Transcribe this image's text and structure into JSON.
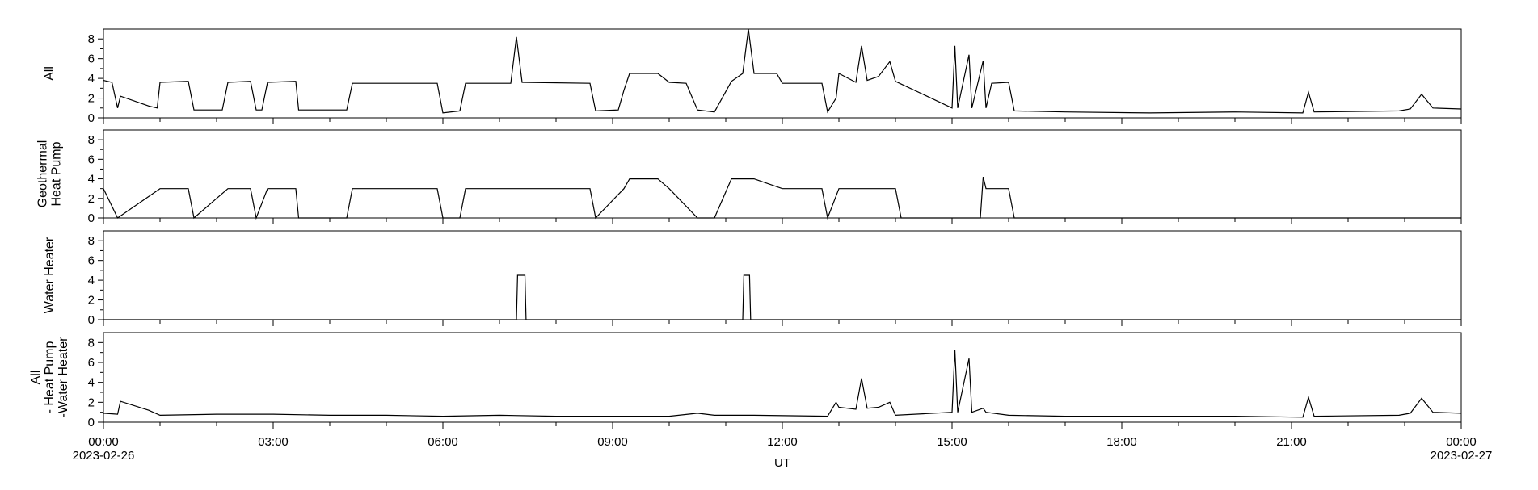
{
  "chart_data": [
    {
      "type": "line",
      "ylabel": [
        "All"
      ],
      "ylim": [
        0,
        9
      ],
      "yticks": [
        0,
        2,
        4,
        6,
        8
      ],
      "xlim": [
        "2023-02-26T00:00",
        "2023-02-27T00:00"
      ],
      "series": [
        {
          "values": [
            [
              0,
              3.8
            ],
            [
              0.15,
              3.6
            ],
            [
              0.25,
              1.0
            ],
            [
              0.3,
              2.2
            ],
            [
              0.8,
              1.2
            ],
            [
              0.95,
              1.0
            ],
            [
              1.0,
              3.6
            ],
            [
              1.5,
              3.7
            ],
            [
              1.6,
              0.8
            ],
            [
              2.1,
              0.8
            ],
            [
              2.2,
              3.6
            ],
            [
              2.6,
              3.7
            ],
            [
              2.7,
              0.8
            ],
            [
              2.8,
              0.8
            ],
            [
              2.9,
              3.6
            ],
            [
              3.4,
              3.7
            ],
            [
              3.45,
              0.8
            ],
            [
              4.3,
              0.8
            ],
            [
              4.4,
              3.5
            ],
            [
              5.9,
              3.5
            ],
            [
              6.0,
              0.5
            ],
            [
              6.3,
              0.7
            ],
            [
              6.4,
              3.5
            ],
            [
              7.2,
              3.5
            ],
            [
              7.3,
              8.2
            ],
            [
              7.4,
              3.6
            ],
            [
              8.6,
              3.5
            ],
            [
              8.7,
              0.7
            ],
            [
              9.1,
              0.8
            ],
            [
              9.2,
              2.8
            ],
            [
              9.3,
              4.5
            ],
            [
              9.8,
              4.5
            ],
            [
              10.0,
              3.6
            ],
            [
              10.3,
              3.5
            ],
            [
              10.5,
              0.8
            ],
            [
              10.8,
              0.6
            ],
            [
              11.1,
              3.7
            ],
            [
              11.3,
              4.5
            ],
            [
              11.4,
              9.0
            ],
            [
              11.5,
              4.5
            ],
            [
              11.9,
              4.5
            ],
            [
              12.0,
              3.5
            ],
            [
              12.7,
              3.5
            ],
            [
              12.8,
              0.6
            ],
            [
              12.95,
              2.0
            ],
            [
              13.0,
              4.5
            ],
            [
              13.3,
              3.6
            ],
            [
              13.4,
              7.3
            ],
            [
              13.5,
              3.8
            ],
            [
              13.7,
              4.2
            ],
            [
              13.9,
              5.7
            ],
            [
              14.0,
              3.7
            ],
            [
              15.0,
              1.0
            ],
            [
              15.05,
              7.3
            ],
            [
              15.1,
              1.0
            ],
            [
              15.3,
              6.4
            ],
            [
              15.35,
              1.0
            ],
            [
              15.55,
              5.8
            ],
            [
              15.6,
              1.0
            ],
            [
              15.7,
              3.5
            ],
            [
              16.0,
              3.6
            ],
            [
              16.1,
              0.7
            ],
            [
              17.0,
              0.6
            ],
            [
              18.5,
              0.5
            ],
            [
              20.0,
              0.6
            ],
            [
              21.2,
              0.5
            ],
            [
              21.3,
              2.6
            ],
            [
              21.4,
              0.6
            ],
            [
              22.9,
              0.7
            ],
            [
              23.1,
              0.9
            ],
            [
              23.3,
              2.4
            ],
            [
              23.5,
              1.0
            ],
            [
              24.0,
              0.9
            ]
          ]
        }
      ]
    },
    {
      "type": "line",
      "ylabel": [
        "Geothermal",
        "Heat Pump"
      ],
      "ylim": [
        0,
        9
      ],
      "yticks": [
        0,
        2,
        4,
        6,
        8
      ],
      "xlim": [
        "2023-02-26T00:00",
        "2023-02-27T00:00"
      ],
      "series": [
        {
          "values": [
            [
              0,
              3.0
            ],
            [
              0.25,
              0.0
            ],
            [
              1.0,
              3.0
            ],
            [
              1.5,
              3.0
            ],
            [
              1.6,
              0.0
            ],
            [
              2.2,
              3.0
            ],
            [
              2.6,
              3.0
            ],
            [
              2.7,
              0.0
            ],
            [
              2.9,
              3.0
            ],
            [
              3.4,
              3.0
            ],
            [
              3.45,
              0.0
            ],
            [
              4.3,
              0.0
            ],
            [
              4.4,
              3.0
            ],
            [
              5.9,
              3.0
            ],
            [
              6.0,
              0.0
            ],
            [
              6.3,
              0.0
            ],
            [
              6.4,
              3.0
            ],
            [
              8.6,
              3.0
            ],
            [
              8.7,
              0.0
            ],
            [
              9.2,
              3.0
            ],
            [
              9.3,
              4.0
            ],
            [
              9.8,
              4.0
            ],
            [
              10.0,
              3.0
            ],
            [
              10.5,
              0.0
            ],
            [
              10.8,
              0.0
            ],
            [
              11.1,
              4.0
            ],
            [
              11.5,
              4.0
            ],
            [
              12.0,
              3.0
            ],
            [
              12.7,
              3.0
            ],
            [
              12.8,
              0.0
            ],
            [
              13.0,
              3.0
            ],
            [
              14.0,
              3.0
            ],
            [
              14.1,
              0.0
            ],
            [
              15.5,
              0.0
            ],
            [
              15.55,
              4.2
            ],
            [
              15.6,
              3.0
            ],
            [
              16.0,
              3.0
            ],
            [
              16.1,
              0.0
            ],
            [
              24.0,
              0.0
            ]
          ]
        }
      ]
    },
    {
      "type": "line",
      "ylabel": [
        "Water Heater"
      ],
      "ylim": [
        0,
        9
      ],
      "yticks": [
        0,
        2,
        4,
        6,
        8
      ],
      "xlim": [
        "2023-02-26T00:00",
        "2023-02-27T00:00"
      ],
      "series": [
        {
          "values": [
            [
              0,
              0.0
            ],
            [
              7.3,
              0.0
            ],
            [
              7.32,
              4.5
            ],
            [
              7.45,
              4.5
            ],
            [
              7.47,
              0.0
            ],
            [
              11.3,
              0.0
            ],
            [
              11.32,
              4.5
            ],
            [
              11.42,
              4.5
            ],
            [
              11.44,
              0.0
            ],
            [
              24.0,
              0.0
            ]
          ]
        }
      ]
    },
    {
      "type": "line",
      "ylabel": [
        "All",
        "- Heat Pump",
        "-Water Heater"
      ],
      "ylim": [
        0,
        9
      ],
      "yticks": [
        0,
        2,
        4,
        6,
        8
      ],
      "xlim": [
        "2023-02-26T00:00",
        "2023-02-27T00:00"
      ],
      "series": [
        {
          "values": [
            [
              0,
              0.9
            ],
            [
              0.25,
              0.8
            ],
            [
              0.3,
              2.1
            ],
            [
              0.8,
              1.2
            ],
            [
              1.0,
              0.7
            ],
            [
              2.0,
              0.8
            ],
            [
              3.0,
              0.8
            ],
            [
              4.0,
              0.7
            ],
            [
              5.0,
              0.7
            ],
            [
              6.0,
              0.6
            ],
            [
              7.0,
              0.7
            ],
            [
              8.0,
              0.6
            ],
            [
              9.0,
              0.6
            ],
            [
              10.0,
              0.6
            ],
            [
              10.5,
              0.9
            ],
            [
              10.8,
              0.7
            ],
            [
              11.5,
              0.7
            ],
            [
              12.8,
              0.6
            ],
            [
              12.95,
              2.0
            ],
            [
              13.0,
              1.5
            ],
            [
              13.3,
              1.3
            ],
            [
              13.4,
              4.4
            ],
            [
              13.5,
              1.4
            ],
            [
              13.7,
              1.5
            ],
            [
              13.9,
              2.0
            ],
            [
              14.0,
              0.7
            ],
            [
              15.0,
              1.0
            ],
            [
              15.05,
              7.3
            ],
            [
              15.1,
              1.0
            ],
            [
              15.3,
              6.4
            ],
            [
              15.35,
              1.0
            ],
            [
              15.55,
              1.4
            ],
            [
              15.6,
              1.0
            ],
            [
              16.0,
              0.7
            ],
            [
              17.0,
              0.6
            ],
            [
              18.0,
              0.6
            ],
            [
              20.0,
              0.6
            ],
            [
              21.2,
              0.5
            ],
            [
              21.3,
              2.5
            ],
            [
              21.4,
              0.6
            ],
            [
              22.9,
              0.7
            ],
            [
              23.1,
              0.9
            ],
            [
              23.3,
              2.4
            ],
            [
              23.5,
              1.0
            ],
            [
              24.0,
              0.9
            ]
          ]
        }
      ]
    }
  ],
  "x_axis": {
    "ticks": [
      {
        "label": "00:00",
        "sub": "2023-02-26"
      },
      {
        "label": "03:00",
        "sub": ""
      },
      {
        "label": "06:00",
        "sub": ""
      },
      {
        "label": "09:00",
        "sub": ""
      },
      {
        "label": "12:00",
        "sub": ""
      },
      {
        "label": "15:00",
        "sub": ""
      },
      {
        "label": "18:00",
        "sub": ""
      },
      {
        "label": "21:00",
        "sub": ""
      },
      {
        "label": "00:00",
        "sub": "2023-02-27"
      }
    ],
    "xlabel": "UT"
  }
}
